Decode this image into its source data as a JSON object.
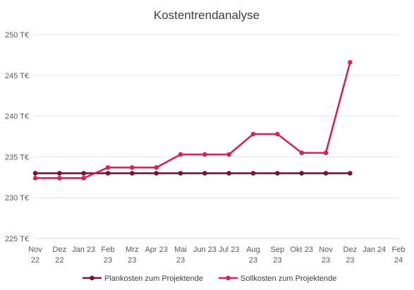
{
  "chart_data": {
    "type": "line",
    "title": "Kostentrendanalyse",
    "x_tick_labels": [
      [
        "Nov",
        "22"
      ],
      [
        "Dez",
        "22"
      ],
      [
        "Jan 23"
      ],
      [
        "Feb",
        "23"
      ],
      [
        "Mrz",
        "23"
      ],
      [
        "Apr 23"
      ],
      [
        "Mai",
        "23"
      ],
      [
        "Jun 23"
      ],
      [
        "Jul 23"
      ],
      [
        "Aug",
        "23"
      ],
      [
        "Sep",
        "23"
      ],
      [
        "Okt 23"
      ],
      [
        "Nov",
        "23"
      ],
      [
        "Dez",
        "23"
      ],
      [
        "Jan 24"
      ],
      [
        "Feb",
        "24"
      ]
    ],
    "y_tick_labels": [
      "225 T€",
      "230 T€",
      "235 T€",
      "240 T€",
      "245 T€",
      "250 T€"
    ],
    "ylim": [
      225,
      250
    ],
    "y_step": 5,
    "grid": true,
    "legend_position": "bottom",
    "series": [
      {
        "name": "Plankosten zum Projektende",
        "color": "#70163A",
        "x_index": [
          0,
          1,
          2,
          3,
          4,
          5,
          6,
          7,
          8,
          9,
          10,
          11,
          12,
          13
        ],
        "values": [
          233.0,
          233.0,
          233.0,
          233.0,
          233.0,
          233.0,
          233.0,
          233.0,
          233.0,
          233.0,
          233.0,
          233.0,
          233.0,
          233.0
        ]
      },
      {
        "name": "Sollkosten zum Projektende",
        "color": "#D6245A",
        "x_index": [
          0,
          1,
          2,
          3,
          4,
          5,
          6,
          7,
          8,
          9,
          10,
          11,
          12,
          13
        ],
        "values": [
          232.4,
          232.4,
          232.4,
          233.7,
          233.7,
          233.7,
          235.3,
          235.3,
          235.3,
          237.8,
          237.8,
          235.5,
          235.5,
          246.6
        ]
      }
    ]
  }
}
